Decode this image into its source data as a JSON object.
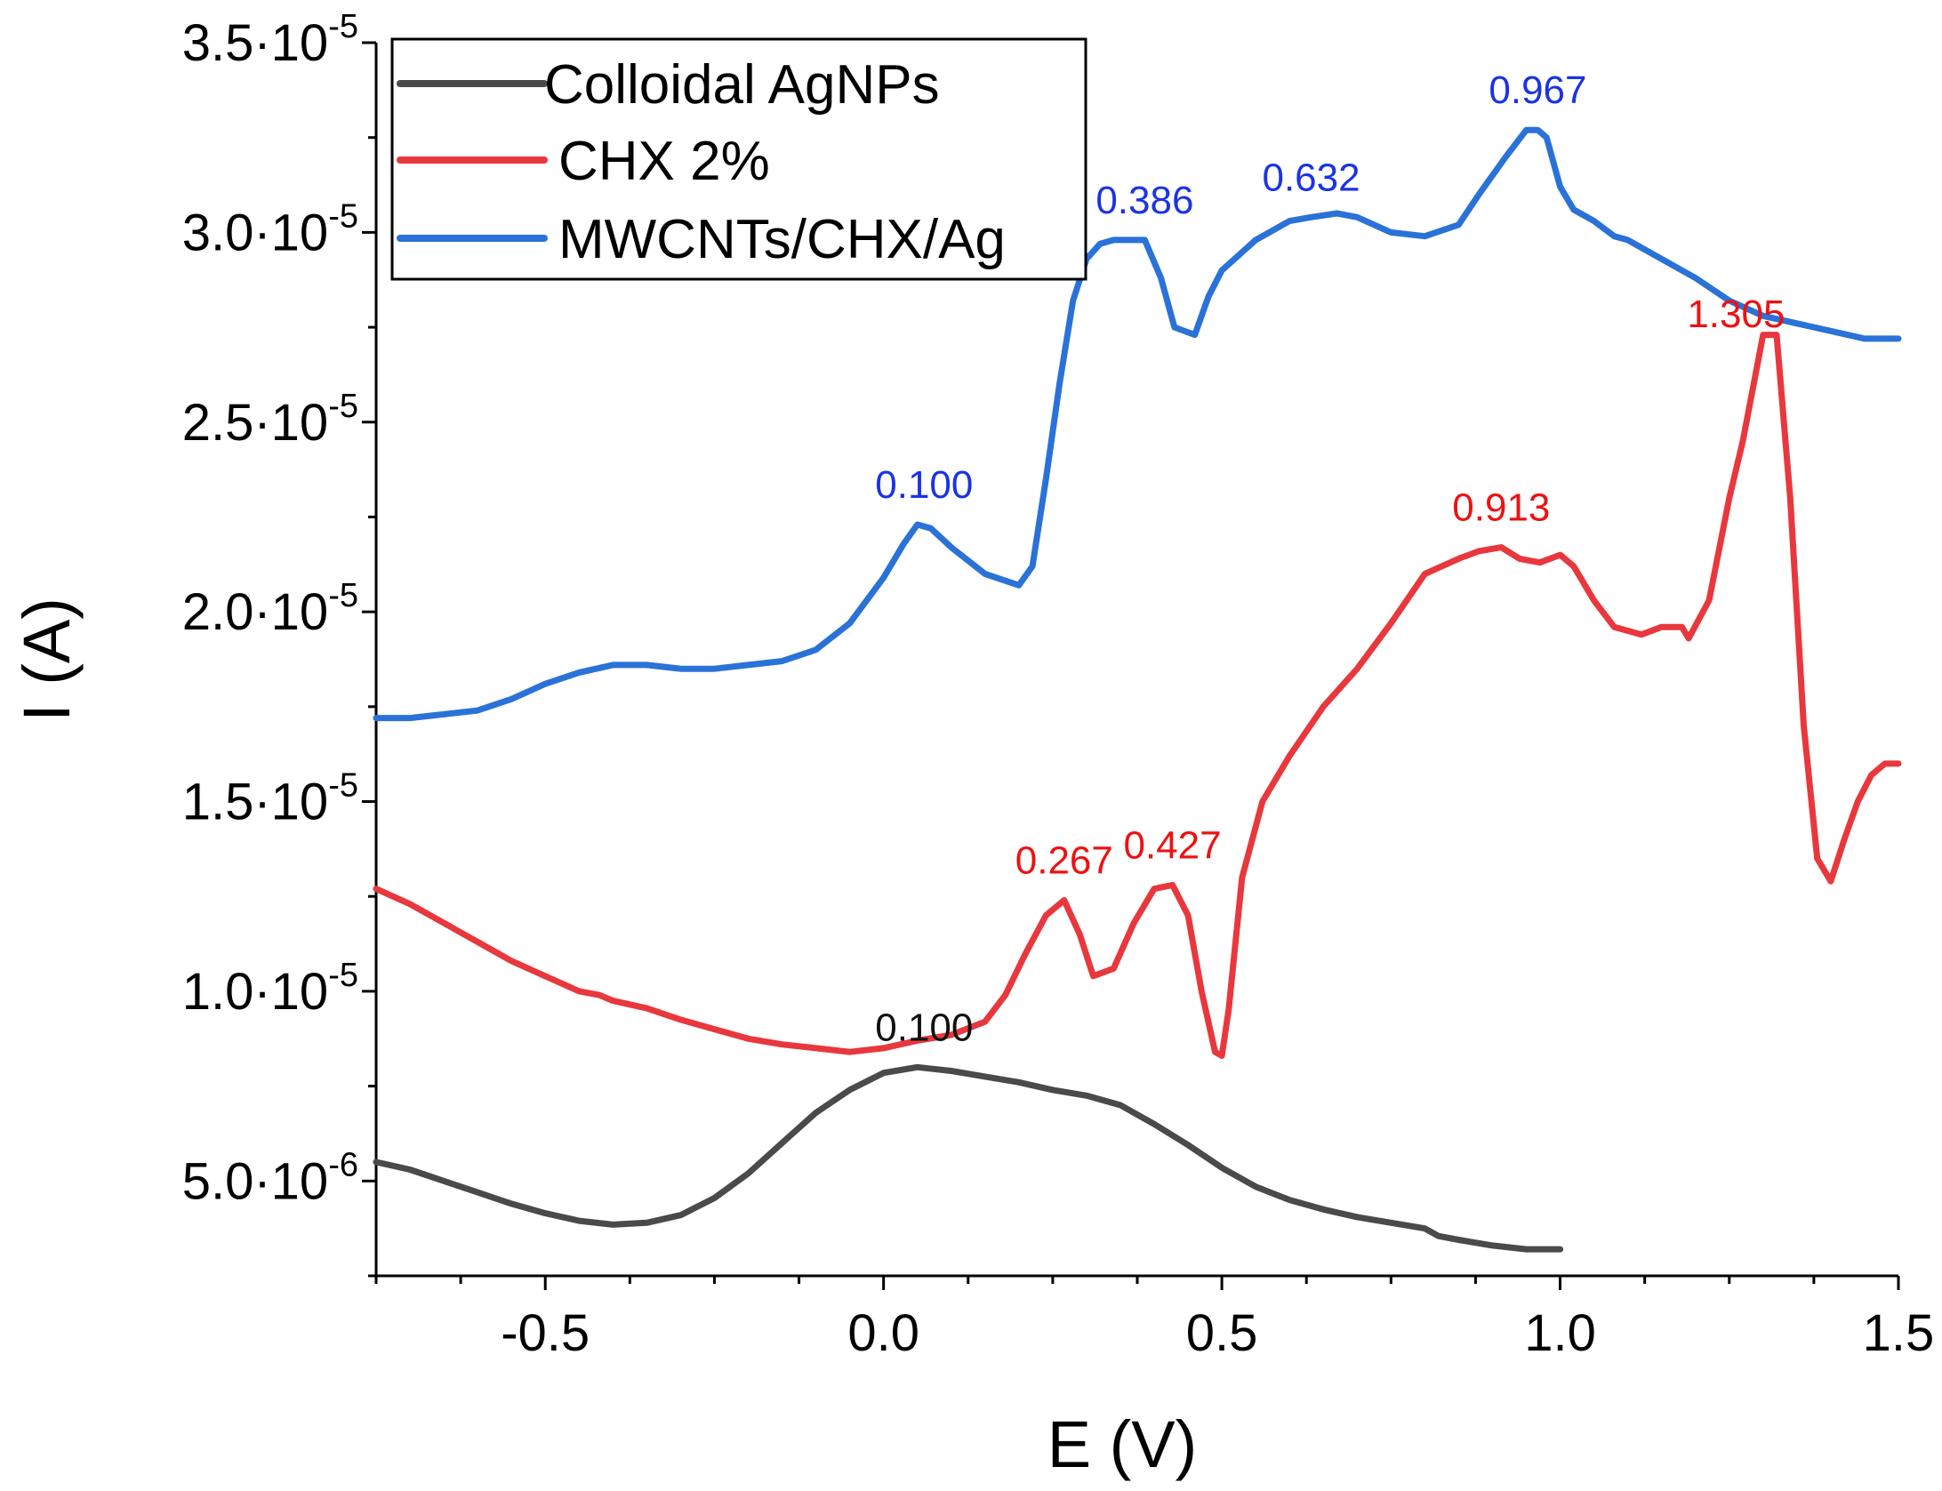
{
  "chart_data": {
    "type": "line",
    "xlabel": "E (V)",
    "ylabel": "I (A)",
    "xlim": [
      -0.75,
      1.5
    ],
    "ylim": [
      2.5e-06,
      3.5e-05
    ],
    "x_ticks": [
      {
        "value": -0.5,
        "label": "-0.5"
      },
      {
        "value": 0.0,
        "label": "0.0"
      },
      {
        "value": 0.5,
        "label": "0.5"
      },
      {
        "value": 1.0,
        "label": "1.0"
      },
      {
        "value": 1.5,
        "label": "1.5"
      }
    ],
    "y_ticks": [
      {
        "value": 5e-06,
        "mantissa": "5.0·10",
        "exp": "-6"
      },
      {
        "value": 1e-05,
        "mantissa": "1.0·10",
        "exp": "-5"
      },
      {
        "value": 1.5e-05,
        "mantissa": "1.5·10",
        "exp": "-5"
      },
      {
        "value": 2e-05,
        "mantissa": "2.0·10",
        "exp": "-5"
      },
      {
        "value": 2.5e-05,
        "mantissa": "2.5·10",
        "exp": "-5"
      },
      {
        "value": 3e-05,
        "mantissa": "3.0·10",
        "exp": "-5"
      },
      {
        "value": 3.5e-05,
        "mantissa": "3.5·10",
        "exp": "-5"
      }
    ],
    "legend_position": "top-left",
    "series": [
      {
        "name": "Colloidal AgNPs",
        "color": "#4a4a4a",
        "x": [
          -0.75,
          -0.7,
          -0.65,
          -0.6,
          -0.55,
          -0.5,
          -0.45,
          -0.4,
          -0.35,
          -0.3,
          -0.25,
          -0.2,
          -0.15,
          -0.1,
          -0.05,
          0.0,
          0.05,
          0.1,
          0.15,
          0.2,
          0.25,
          0.3,
          0.35,
          0.4,
          0.45,
          0.5,
          0.55,
          0.6,
          0.65,
          0.7,
          0.75,
          0.8,
          0.82,
          0.85,
          0.9,
          0.95,
          1.0
        ],
        "y": [
          5.5e-06,
          5.3e-06,
          5e-06,
          4.7e-06,
          4.4e-06,
          4.15e-06,
          3.95e-06,
          3.85e-06,
          3.9e-06,
          4.1e-06,
          4.55e-06,
          5.2e-06,
          6e-06,
          6.8e-06,
          7.4e-06,
          7.85e-06,
          8e-06,
          7.9e-06,
          7.75e-06,
          7.6e-06,
          7.4e-06,
          7.25e-06,
          7e-06,
          6.5e-06,
          5.95e-06,
          5.35e-06,
          4.85e-06,
          4.5e-06,
          4.25e-06,
          4.05e-06,
          3.9e-06,
          3.75e-06,
          3.55e-06,
          3.45e-06,
          3.3e-06,
          3.2e-06,
          3.2e-06
        ]
      },
      {
        "name": "CHX 2%",
        "color": "#e8383d",
        "x": [
          -0.75,
          -0.7,
          -0.65,
          -0.6,
          -0.55,
          -0.5,
          -0.45,
          -0.42,
          -0.4,
          -0.35,
          -0.3,
          -0.25,
          -0.2,
          -0.15,
          -0.1,
          -0.05,
          0.0,
          0.05,
          0.1,
          0.15,
          0.18,
          0.21,
          0.24,
          0.267,
          0.29,
          0.31,
          0.34,
          0.37,
          0.4,
          0.427,
          0.45,
          0.47,
          0.49,
          0.5,
          0.51,
          0.53,
          0.56,
          0.6,
          0.65,
          0.7,
          0.75,
          0.8,
          0.85,
          0.88,
          0.913,
          0.94,
          0.97,
          1.0,
          1.02,
          1.05,
          1.08,
          1.12,
          1.15,
          1.18,
          1.19,
          1.22,
          1.25,
          1.27,
          1.3,
          1.32,
          1.34,
          1.36,
          1.38,
          1.4,
          1.42,
          1.44,
          1.46,
          1.48,
          1.5
        ],
        "y": [
          1.27e-05,
          1.23e-05,
          1.18e-05,
          1.13e-05,
          1.08e-05,
          1.04e-05,
          1e-05,
          9.9e-06,
          9.75e-06,
          9.55e-06,
          9.25e-06,
          9e-06,
          8.75e-06,
          8.6e-06,
          8.5e-06,
          8.4e-06,
          8.5e-06,
          8.7e-06,
          8.85e-06,
          9.2e-06,
          9.9e-06,
          1.1e-05,
          1.2e-05,
          1.24e-05,
          1.15e-05,
          1.04e-05,
          1.06e-05,
          1.18e-05,
          1.27e-05,
          1.28e-05,
          1.2e-05,
          1e-05,
          8.4e-06,
          8.3e-06,
          9.5e-06,
          1.3e-05,
          1.5e-05,
          1.62e-05,
          1.75e-05,
          1.85e-05,
          1.97e-05,
          2.1e-05,
          2.14e-05,
          2.16e-05,
          2.17e-05,
          2.14e-05,
          2.13e-05,
          2.15e-05,
          2.12e-05,
          2.03e-05,
          1.96e-05,
          1.94e-05,
          1.96e-05,
          1.96e-05,
          1.93e-05,
          2.03e-05,
          2.3e-05,
          2.45e-05,
          2.73e-05,
          2.73e-05,
          2.3e-05,
          1.7e-05,
          1.35e-05,
          1.29e-05,
          1.4e-05,
          1.5e-05,
          1.57e-05,
          1.6e-05,
          1.6e-05
        ]
      },
      {
        "name": "MWCNTs/CHX/Ag",
        "color": "#2a72d8",
        "x": [
          -0.75,
          -0.7,
          -0.65,
          -0.6,
          -0.55,
          -0.5,
          -0.45,
          -0.4,
          -0.35,
          -0.3,
          -0.25,
          -0.2,
          -0.15,
          -0.1,
          -0.05,
          0.0,
          0.03,
          0.05,
          0.07,
          0.1,
          0.15,
          0.2,
          0.22,
          0.24,
          0.26,
          0.28,
          0.3,
          0.32,
          0.34,
          0.36,
          0.386,
          0.41,
          0.43,
          0.46,
          0.48,
          0.5,
          0.55,
          0.6,
          0.632,
          0.67,
          0.7,
          0.75,
          0.8,
          0.85,
          0.88,
          0.92,
          0.95,
          0.967,
          0.98,
          1.0,
          1.02,
          1.05,
          1.08,
          1.1,
          1.15,
          1.2,
          1.25,
          1.3,
          1.35,
          1.4,
          1.45,
          1.5
        ],
        "y": [
          1.72e-05,
          1.72e-05,
          1.73e-05,
          1.74e-05,
          1.77e-05,
          1.81e-05,
          1.84e-05,
          1.86e-05,
          1.86e-05,
          1.85e-05,
          1.85e-05,
          1.86e-05,
          1.87e-05,
          1.9e-05,
          1.97e-05,
          2.09e-05,
          2.18e-05,
          2.23e-05,
          2.22e-05,
          2.17e-05,
          2.1e-05,
          2.07e-05,
          2.12e-05,
          2.35e-05,
          2.6e-05,
          2.82e-05,
          2.93e-05,
          2.97e-05,
          2.98e-05,
          2.98e-05,
          2.98e-05,
          2.88e-05,
          2.75e-05,
          2.73e-05,
          2.83e-05,
          2.9e-05,
          2.98e-05,
          3.03e-05,
          3.04e-05,
          3.05e-05,
          3.04e-05,
          3e-05,
          2.99e-05,
          3.02e-05,
          3.1e-05,
          3.2e-05,
          3.27e-05,
          3.27e-05,
          3.25e-05,
          3.12e-05,
          3.06e-05,
          3.03e-05,
          2.99e-05,
          2.98e-05,
          2.93e-05,
          2.88e-05,
          2.82e-05,
          2.78e-05,
          2.76e-05,
          2.74e-05,
          2.72e-05,
          2.72e-05
        ]
      }
    ],
    "annotations": [
      {
        "text": "0.100",
        "series": "MWCNTs/CHX/Ag",
        "x": 0.06,
        "y": 2.23e-05
      },
      {
        "text": "0.386",
        "series": "MWCNTs/CHX/Ag",
        "x": 0.386,
        "y": 2.98e-05
      },
      {
        "text": "0.632",
        "series": "MWCNTs/CHX/Ag",
        "x": 0.632,
        "y": 3.04e-05
      },
      {
        "text": "0.967",
        "series": "MWCNTs/CHX/Ag",
        "x": 0.967,
        "y": 3.27e-05
      },
      {
        "text": "1.305",
        "series": "CHX 2%",
        "x": 1.26,
        "y": 2.68e-05
      },
      {
        "text": "0.913",
        "series": "CHX 2%",
        "x": 0.913,
        "y": 2.17e-05
      },
      {
        "text": "0.267",
        "series": "CHX 2%",
        "x": 0.267,
        "y": 1.24e-05
      },
      {
        "text": "0.427",
        "series": "CHX 2%",
        "x": 0.427,
        "y": 1.28e-05
      },
      {
        "text": "0.100",
        "series": "Colloidal AgNPs",
        "x": 0.06,
        "y": 8e-06
      }
    ]
  }
}
